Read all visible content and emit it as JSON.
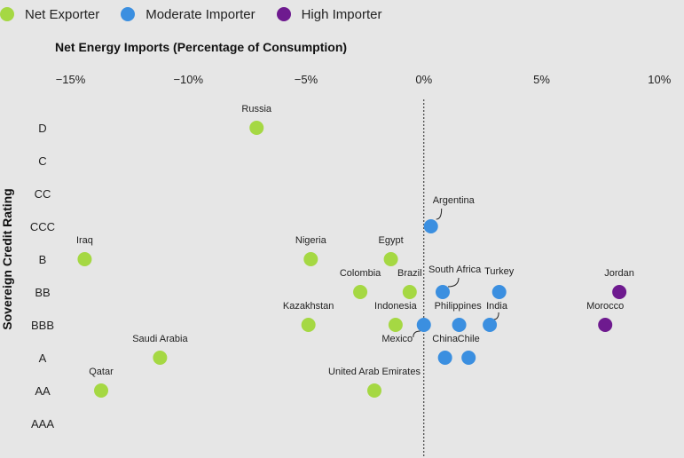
{
  "legend": [
    {
      "label": "Net Exporter",
      "color": "#a5d843"
    },
    {
      "label": "Moderate Importer",
      "color": "#3b8fe0"
    },
    {
      "label": "High Importer",
      "color": "#6e1a8f"
    }
  ],
  "chart_data": {
    "type": "scatter",
    "title": "",
    "xlabel": "Net Energy Imports (Percentage of Consumption)",
    "ylabel": "Sovereign Credit Rating",
    "xlim": [
      -16,
      10
    ],
    "x_ticks": [
      -15,
      -10,
      -5,
      0,
      5,
      10
    ],
    "x_tick_labels": [
      "−15%",
      "−10%",
      "−5%",
      "0%",
      "5%",
      "10%"
    ],
    "y_categories": [
      "D",
      "C",
      "CC",
      "CCC",
      "B",
      "BB",
      "BBB",
      "A",
      "AA",
      "AAA"
    ],
    "reference_line_x": 0,
    "grid": false,
    "legend_position": "top-left",
    "categories": {
      "Net Exporter": "#a5d843",
      "Moderate Importer": "#3b8fe0",
      "High Importer": "#6e1a8f"
    },
    "points": [
      {
        "label": "Russia",
        "x": -7.1,
        "y": "D",
        "category": "Net Exporter"
      },
      {
        "label": "Argentina",
        "x": 0.3,
        "y": "CCC",
        "category": "Moderate Importer"
      },
      {
        "label": "Iraq",
        "x": -14.4,
        "y": "B",
        "category": "Net Exporter"
      },
      {
        "label": "Nigeria",
        "x": -4.8,
        "y": "B",
        "category": "Net Exporter"
      },
      {
        "label": "Egypt",
        "x": -1.4,
        "y": "B",
        "category": "Net Exporter"
      },
      {
        "label": "Colombia",
        "x": -2.7,
        "y": "BB",
        "category": "Net Exporter"
      },
      {
        "label": "Brazil",
        "x": -0.6,
        "y": "BB",
        "category": "Net Exporter"
      },
      {
        "label": "South Africa",
        "x": 0.8,
        "y": "BB",
        "category": "Moderate Importer"
      },
      {
        "label": "Turkey",
        "x": 3.2,
        "y": "BB",
        "category": "Moderate Importer"
      },
      {
        "label": "Jordan",
        "x": 8.3,
        "y": "BB",
        "category": "High Importer"
      },
      {
        "label": "Kazakhstan",
        "x": -4.9,
        "y": "BBB",
        "category": "Net Exporter"
      },
      {
        "label": "Indonesia",
        "x": -1.2,
        "y": "BBB",
        "category": "Net Exporter"
      },
      {
        "label": "Mexico",
        "x": 0.0,
        "y": "BBB",
        "category": "Moderate Importer"
      },
      {
        "label": "Philippines",
        "x": 1.5,
        "y": "BBB",
        "category": "Moderate Importer"
      },
      {
        "label": "India",
        "x": 2.8,
        "y": "BBB",
        "category": "Moderate Importer"
      },
      {
        "label": "Morocco",
        "x": 7.7,
        "y": "BBB",
        "category": "High Importer"
      },
      {
        "label": "Saudi Arabia",
        "x": -11.2,
        "y": "A",
        "category": "Net Exporter"
      },
      {
        "label": "China",
        "x": 0.9,
        "y": "A",
        "category": "Moderate Importer"
      },
      {
        "label": "Chile",
        "x": 1.9,
        "y": "A",
        "category": "Moderate Importer"
      },
      {
        "label": "Qatar",
        "x": -13.7,
        "y": "AA",
        "category": "Net Exporter"
      },
      {
        "label": "United Arab Emirates",
        "x": -2.1,
        "y": "AA",
        "category": "Net Exporter"
      }
    ]
  }
}
